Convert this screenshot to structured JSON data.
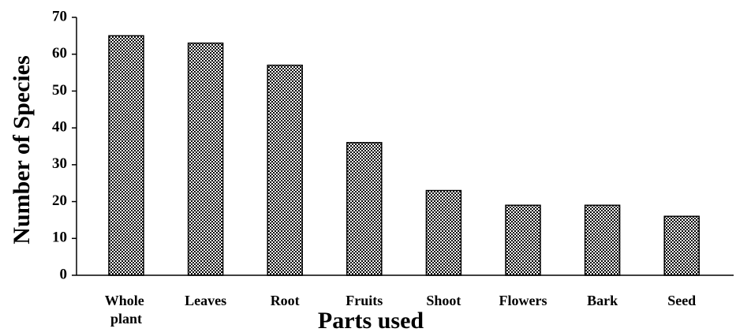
{
  "chart_data": {
    "type": "bar",
    "xlabel": "Parts used",
    "ylabel": "Number of Species",
    "categories": [
      "Whole plant",
      "Leaves",
      "Root",
      "Fruits",
      "Shoot",
      "Flowers",
      "Bark",
      "Seed"
    ],
    "values": [
      65,
      63,
      57,
      36,
      23,
      19,
      19,
      16
    ],
    "color": "#000000",
    "ylim": [
      0,
      70
    ],
    "yticks": [
      0,
      10,
      20,
      30,
      40,
      50,
      60,
      70
    ],
    "grid": false
  }
}
